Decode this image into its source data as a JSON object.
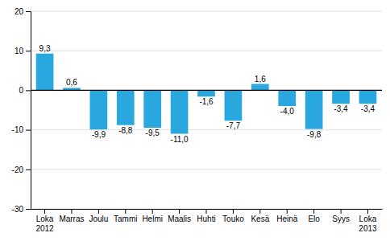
{
  "chart_data": {
    "type": "bar",
    "categories": [
      "Loka\n2012",
      "Marras",
      "Joulu",
      "Tammi",
      "Helmi",
      "Maalis",
      "Huhti",
      "Touko",
      "Kesä",
      "Heinä",
      "Elo",
      "Syys",
      "Loka\n2013"
    ],
    "values": [
      9.3,
      0.6,
      -9.9,
      -8.8,
      -9.5,
      -11.0,
      -1.6,
      -7.7,
      1.6,
      -4.0,
      -9.8,
      -3.4,
      -3.4
    ],
    "value_labels": [
      "9,3",
      "0,6",
      "-9,9",
      "-8,8",
      "-9,5",
      "-11,0",
      "-1,6",
      "-7,7",
      "1,6",
      "-4,0",
      "-9,8",
      "-3,4",
      "-3,4"
    ],
    "color": "#29a8e0",
    "ylim": [
      -30,
      20
    ],
    "yticks": [
      -30,
      -20,
      -10,
      0,
      10,
      20
    ],
    "grid": true,
    "data_labels": true
  }
}
